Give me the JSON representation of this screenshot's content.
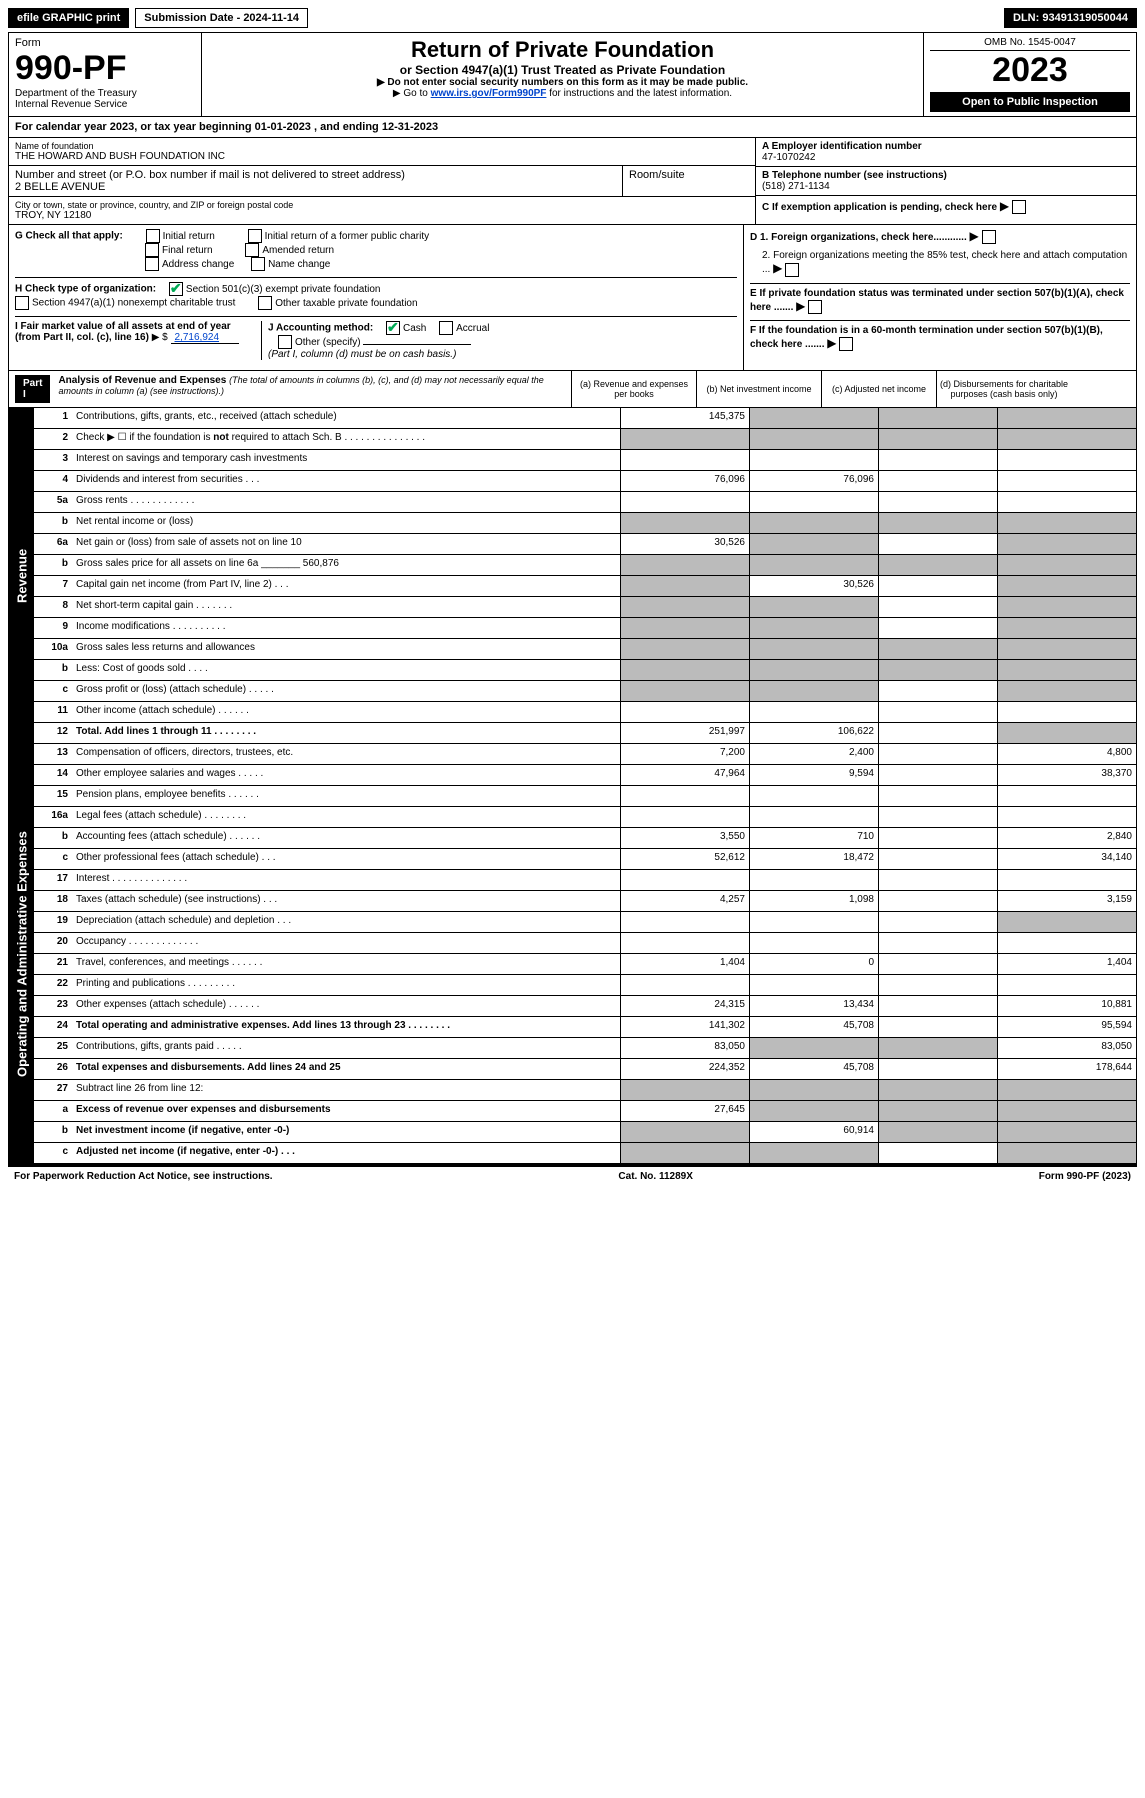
{
  "topbar": {
    "efile": "efile GRAPHIC print",
    "sub_label": "Submission Date - 2024-11-14",
    "dln": "DLN: 93491319050044"
  },
  "header": {
    "form_label": "Form",
    "form_num": "990-PF",
    "dept1": "Department of the Treasury",
    "dept2": "Internal Revenue Service",
    "title": "Return of Private Foundation",
    "subtitle": "or Section 4947(a)(1) Trust Treated as Private Foundation",
    "note1": "▶ Do not enter social security numbers on this form as it may be made public.",
    "note2_a": "▶ Go to ",
    "note2_link": "www.irs.gov/Form990PF",
    "note2_b": " for instructions and the latest information.",
    "omb": "OMB No. 1545-0047",
    "year": "2023",
    "open_pub": "Open to Public Inspection"
  },
  "calyear": {
    "text_a": "For calendar year 2023, or tax year beginning ",
    "begin": "01-01-2023",
    "text_b": " , and ending ",
    "end": "12-31-2023"
  },
  "info": {
    "name_label": "Name of foundation",
    "name": "THE HOWARD AND BUSH FOUNDATION INC",
    "addr_label": "Number and street (or P.O. box number if mail is not delivered to street address)",
    "addr": "2 BELLE AVENUE",
    "room_label": "Room/suite",
    "city_label": "City or town, state or province, country, and ZIP or foreign postal code",
    "city": "TROY, NY  12180",
    "a_label": "A Employer identification number",
    "a_val": "47-1070242",
    "b_label": "B Telephone number (see instructions)",
    "b_val": "(518) 271-1134",
    "c_label": "C If exemption application is pending, check here",
    "d1_label": "D 1. Foreign organizations, check here............",
    "d2_label": "2. Foreign organizations meeting the 85% test, check here and attach computation ...",
    "e_label": "E  If private foundation status was terminated under section 507(b)(1)(A), check here .......",
    "f_label": "F  If the foundation is in a 60-month termination under section 507(b)(1)(B), check here ......."
  },
  "g": {
    "label": "G Check all that apply:",
    "opts": [
      "Initial return",
      "Final return",
      "Address change",
      "Initial return of a former public charity",
      "Amended return",
      "Name change"
    ]
  },
  "h": {
    "label": "H Check type of organization:",
    "opt1": "Section 501(c)(3) exempt private foundation",
    "opt2": "Section 4947(a)(1) nonexempt charitable trust",
    "opt3": "Other taxable private foundation"
  },
  "i": {
    "label": "I Fair market value of all assets at end of year (from Part II, col. (c), line 16)",
    "val": "2,716,924",
    "prefix": "▶ $"
  },
  "j": {
    "label": "J Accounting method:",
    "cash": "Cash",
    "accrual": "Accrual",
    "other": "Other (specify)",
    "note": "(Part I, column (d) must be on cash basis.)"
  },
  "part1": {
    "hdr": "Part I",
    "title": "Analysis of Revenue and Expenses",
    "title_note": "(The total of amounts in columns (b), (c), and (d) may not necessarily equal the amounts in column (a) (see instructions).)",
    "col_a": "(a)   Revenue and expenses per books",
    "col_b": "(b)   Net investment income",
    "col_c": "(c)   Adjusted net income",
    "col_d": "(d)   Disbursements for charitable purposes (cash basis only)"
  },
  "sections": {
    "rev": "Revenue",
    "exp": "Operating and Administrative Expenses"
  },
  "rows": [
    {
      "n": "1",
      "d": "",
      "a": "145,375",
      "b": "",
      "c": "",
      "sh": [
        "b",
        "c",
        "d"
      ]
    },
    {
      "n": "2",
      "d": "",
      "a": "",
      "b": "",
      "c": "",
      "sh": [
        "a",
        "b",
        "c",
        "d"
      ]
    },
    {
      "n": "3",
      "d": "",
      "a": "",
      "b": "",
      "c": ""
    },
    {
      "n": "4",
      "d": "",
      "a": "76,096",
      "b": "76,096",
      "c": ""
    },
    {
      "n": "5a",
      "d": "",
      "a": "",
      "b": "",
      "c": ""
    },
    {
      "n": "b",
      "d": "",
      "a": "",
      "b": "",
      "c": "",
      "sh": [
        "a",
        "b",
        "c",
        "d"
      ]
    },
    {
      "n": "6a",
      "d": "",
      "a": "30,526",
      "b": "",
      "c": "",
      "sh": [
        "b",
        "d"
      ]
    },
    {
      "n": "b",
      "d": "",
      "a": "",
      "b": "",
      "c": "",
      "sh": [
        "a",
        "b",
        "c",
        "d"
      ]
    },
    {
      "n": "7",
      "d": "",
      "a": "",
      "b": "30,526",
      "c": "",
      "sh": [
        "a",
        "d"
      ]
    },
    {
      "n": "8",
      "d": "",
      "a": "",
      "b": "",
      "c": "",
      "sh": [
        "a",
        "b",
        "d"
      ]
    },
    {
      "n": "9",
      "d": "",
      "a": "",
      "b": "",
      "c": "",
      "sh": [
        "a",
        "b",
        "d"
      ]
    },
    {
      "n": "10a",
      "d": "",
      "a": "",
      "b": "",
      "c": "",
      "sh": [
        "a",
        "b",
        "c",
        "d"
      ]
    },
    {
      "n": "b",
      "d": "",
      "a": "",
      "b": "",
      "c": "",
      "sh": [
        "a",
        "b",
        "c",
        "d"
      ]
    },
    {
      "n": "c",
      "d": "",
      "a": "",
      "b": "",
      "c": "",
      "sh": [
        "a",
        "b",
        "d"
      ]
    },
    {
      "n": "11",
      "d": "",
      "a": "",
      "b": "",
      "c": ""
    },
    {
      "n": "12",
      "d": "",
      "a": "251,997",
      "b": "106,622",
      "c": "",
      "bold": true,
      "sh": [
        "d"
      ]
    }
  ],
  "exp_rows": [
    {
      "n": "13",
      "d": "4,800",
      "a": "7,200",
      "b": "2,400",
      "c": ""
    },
    {
      "n": "14",
      "d": "38,370",
      "a": "47,964",
      "b": "9,594",
      "c": ""
    },
    {
      "n": "15",
      "d": "",
      "a": "",
      "b": "",
      "c": ""
    },
    {
      "n": "16a",
      "d": "",
      "a": "",
      "b": "",
      "c": ""
    },
    {
      "n": "b",
      "d": "2,840",
      "a": "3,550",
      "b": "710",
      "c": ""
    },
    {
      "n": "c",
      "d": "34,140",
      "a": "52,612",
      "b": "18,472",
      "c": ""
    },
    {
      "n": "17",
      "d": "",
      "a": "",
      "b": "",
      "c": ""
    },
    {
      "n": "18",
      "d": "3,159",
      "a": "4,257",
      "b": "1,098",
      "c": ""
    },
    {
      "n": "19",
      "d": "",
      "a": "",
      "b": "",
      "c": "",
      "sh": [
        "d"
      ]
    },
    {
      "n": "20",
      "d": "",
      "a": "",
      "b": "",
      "c": ""
    },
    {
      "n": "21",
      "d": "1,404",
      "a": "1,404",
      "b": "0",
      "c": ""
    },
    {
      "n": "22",
      "d": "",
      "a": "",
      "b": "",
      "c": ""
    },
    {
      "n": "23",
      "d": "10,881",
      "a": "24,315",
      "b": "13,434",
      "c": ""
    },
    {
      "n": "24",
      "d": "95,594",
      "a": "141,302",
      "b": "45,708",
      "c": "",
      "bold": true
    },
    {
      "n": "25",
      "d": "83,050",
      "a": "83,050",
      "b": "",
      "c": "",
      "sh": [
        "b",
        "c"
      ]
    },
    {
      "n": "26",
      "d": "178,644",
      "a": "224,352",
      "b": "45,708",
      "c": "",
      "bold": true
    },
    {
      "n": "27",
      "d": "",
      "a": "",
      "b": "",
      "c": "",
      "sh": [
        "a",
        "b",
        "c",
        "d"
      ]
    },
    {
      "n": "a",
      "d": "",
      "a": "27,645",
      "b": "",
      "c": "",
      "bold": true,
      "sh": [
        "b",
        "c",
        "d"
      ]
    },
    {
      "n": "b",
      "d": "",
      "a": "",
      "b": "60,914",
      "c": "",
      "bold": true,
      "sh": [
        "a",
        "c",
        "d"
      ]
    },
    {
      "n": "c",
      "d": "",
      "a": "",
      "b": "",
      "c": "",
      "bold": true,
      "sh": [
        "a",
        "b",
        "d"
      ]
    }
  ],
  "footer": {
    "left": "For Paperwork Reduction Act Notice, see instructions.",
    "mid": "Cat. No. 11289X",
    "right": "Form 990-PF (2023)"
  }
}
